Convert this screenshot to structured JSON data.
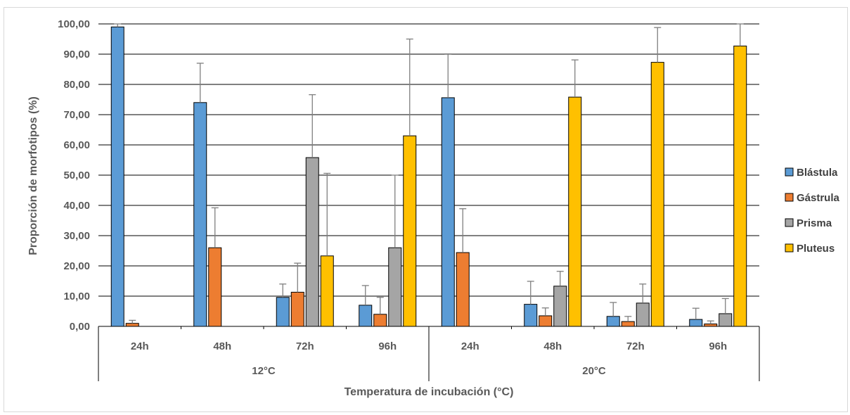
{
  "chart_data": {
    "type": "bar",
    "ylabel": "Proporción de morfotipos (%)",
    "xlabel": "Temperatura de incubación (°C)",
    "ylim": [
      0,
      100
    ],
    "y_ticks": [
      "0,00",
      "10,00",
      "20,00",
      "30,00",
      "40,00",
      "50,00",
      "60,00",
      "70,00",
      "80,00",
      "90,00",
      "100,00"
    ],
    "groups": [
      "12°C",
      "20°C"
    ],
    "categories": [
      "24h",
      "48h",
      "72h",
      "96h",
      "24h",
      "48h",
      "72h",
      "96h"
    ],
    "category_group": [
      0,
      0,
      0,
      0,
      1,
      1,
      1,
      1
    ],
    "legend_position": "right",
    "grid": true,
    "error_bars": true,
    "series": [
      {
        "name": "Blástula",
        "color": "#5b9bd5",
        "values": [
          99.0,
          74.0,
          9.6,
          7.0,
          75.6,
          7.3,
          3.3,
          2.3
        ],
        "errors": [
          1.0,
          13.0,
          4.4,
          6.5,
          14.5,
          7.6,
          4.6,
          3.7
        ],
        "present": [
          true,
          true,
          true,
          true,
          true,
          true,
          true,
          true
        ]
      },
      {
        "name": "Gástrula",
        "color": "#ed7d31",
        "values": [
          1.0,
          26.0,
          11.3,
          4.0,
          24.4,
          3.5,
          1.6,
          0.8
        ],
        "errors": [
          1.0,
          13.2,
          9.6,
          5.6,
          14.5,
          2.6,
          1.7,
          1.0
        ],
        "present": [
          true,
          true,
          true,
          true,
          true,
          true,
          true,
          true
        ]
      },
      {
        "name": "Prisma",
        "color": "#a5a5a5",
        "values": [
          0,
          0,
          55.8,
          26.0,
          0,
          13.3,
          7.7,
          4.2
        ],
        "errors": [
          0,
          0,
          20.8,
          24.0,
          0,
          4.9,
          6.3,
          5.0
        ],
        "present": [
          false,
          false,
          true,
          true,
          false,
          true,
          true,
          true
        ]
      },
      {
        "name": "Pluteus",
        "color": "#ffc000",
        "values": [
          0,
          0,
          23.3,
          63.0,
          0,
          75.8,
          87.3,
          92.7
        ],
        "errors": [
          0,
          0,
          27.3,
          32.0,
          0,
          12.3,
          11.5,
          7.3
        ],
        "present": [
          false,
          false,
          true,
          true,
          false,
          true,
          true,
          true
        ]
      }
    ]
  }
}
